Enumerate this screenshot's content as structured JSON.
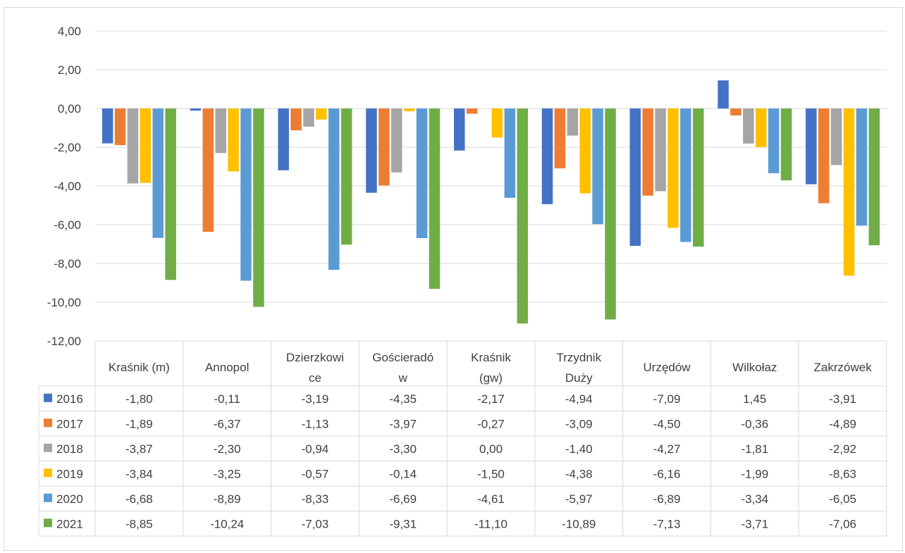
{
  "chart_data": {
    "type": "bar",
    "categories": [
      [
        "Kraśnik (m)"
      ],
      [
        "Annopol"
      ],
      [
        "Dzierzkowi",
        "ce"
      ],
      [
        "Gościeradó",
        "w"
      ],
      [
        "Kraśnik",
        "(gw)"
      ],
      [
        "Trzydnik",
        "Duży"
      ],
      [
        "Urzędów"
      ],
      [
        "Wilkołaz"
      ],
      [
        "Zakrzówek"
      ]
    ],
    "series": [
      {
        "name": "2016",
        "color": "#4472c4",
        "values": [
          -1.8,
          -0.11,
          -3.19,
          -4.35,
          -2.17,
          -4.94,
          -7.09,
          1.45,
          -3.91
        ],
        "labels": [
          "-1,80",
          "-0,11",
          "-3,19",
          "-4,35",
          "-2,17",
          "-4,94",
          "-7,09",
          "1,45",
          "-3,91"
        ]
      },
      {
        "name": "2017",
        "color": "#ed7d31",
        "values": [
          -1.89,
          -6.37,
          -1.13,
          -3.97,
          -0.27,
          -3.09,
          -4.5,
          -0.36,
          -4.89
        ],
        "labels": [
          "-1,89",
          "-6,37",
          "-1,13",
          "-3,97",
          "-0,27",
          "-3,09",
          "-4,50",
          "-0,36",
          "-4,89"
        ]
      },
      {
        "name": "2018",
        "color": "#a5a5a5",
        "values": [
          -3.87,
          -2.3,
          -0.94,
          -3.3,
          0.0,
          -1.4,
          -4.27,
          -1.81,
          -2.92
        ],
        "labels": [
          "-3,87",
          "-2,30",
          "-0,94",
          "-3,30",
          "0,00",
          "-1,40",
          "-4,27",
          "-1,81",
          "-2,92"
        ]
      },
      {
        "name": "2019",
        "color": "#ffc000",
        "values": [
          -3.84,
          -3.25,
          -0.57,
          -0.14,
          -1.5,
          -4.38,
          -6.16,
          -1.99,
          -8.63
        ],
        "labels": [
          "-3,84",
          "-3,25",
          "-0,57",
          "-0,14",
          "-1,50",
          "-4,38",
          "-6,16",
          "-1,99",
          "-8,63"
        ]
      },
      {
        "name": "2020",
        "color": "#5b9bd5",
        "values": [
          -6.68,
          -8.89,
          -8.33,
          -6.69,
          -4.61,
          -5.97,
          -6.89,
          -3.34,
          -6.05
        ],
        "labels": [
          "-6,68",
          "-8,89",
          "-8,33",
          "-6,69",
          "-4,61",
          "-5,97",
          "-6,89",
          "-3,34",
          "-6,05"
        ]
      },
      {
        "name": "2021",
        "color": "#70ad47",
        "values": [
          -8.85,
          -10.24,
          -7.03,
          -9.31,
          -11.1,
          -10.89,
          -7.13,
          -3.71,
          -7.06
        ],
        "labels": [
          "-8,85",
          "-10,24",
          "-7,03",
          "-9,31",
          "-11,10",
          "-10,89",
          "-7,13",
          "-3,71",
          "-7,06"
        ]
      }
    ],
    "ylim": [
      -12,
      4
    ],
    "yticks": [
      4,
      2,
      0,
      -2,
      -4,
      -6,
      -8,
      -10,
      -12
    ],
    "ytick_labels": [
      "4,00",
      "2,00",
      "0,00",
      "-2,00",
      "-4,00",
      "-6,00",
      "-8,00",
      "-10,00",
      "-12,00"
    ],
    "grid": true,
    "legend": "data-table"
  }
}
